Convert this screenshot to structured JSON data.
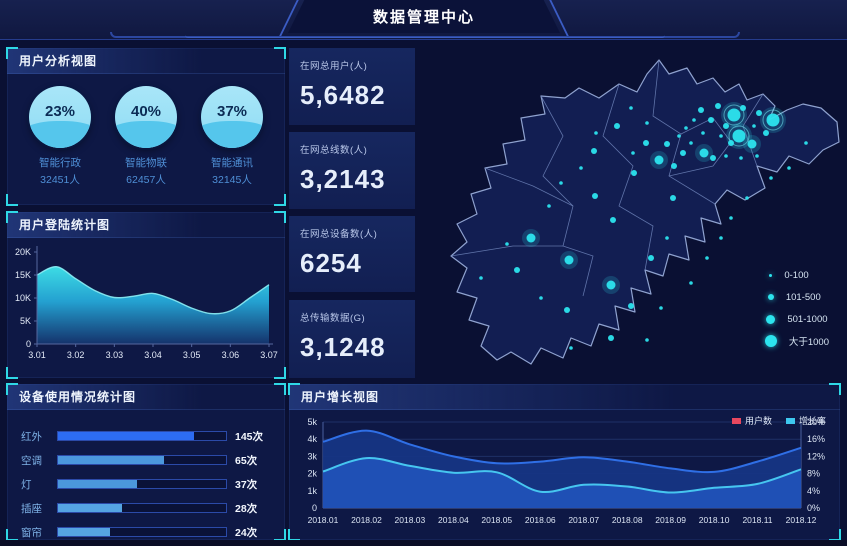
{
  "header": {
    "title": "数据管理中心"
  },
  "colors": {
    "accent_cyan": "#2fd8e6",
    "dot_cyan": "#2ce4ee",
    "bar_primary": "#2d6cf2",
    "bar_secondary": "#4b97dc",
    "users_red_legend": "#e8485f",
    "growth_cyan_legend": "#3ec8ef",
    "map_fill": "#131f55",
    "map_border": "#8fa2cf"
  },
  "panels": {
    "user_analysis": {
      "title": "用户分析视图",
      "gauges": [
        {
          "percent": "23%",
          "label": "智能行政",
          "count": "32451人"
        },
        {
          "percent": "40%",
          "label": "智能物联",
          "count": "62457人"
        },
        {
          "percent": "37%",
          "label": "智能通讯",
          "count": "32145人"
        }
      ]
    },
    "login_stats": {
      "title": "用户登陆统计图"
    },
    "device_usage": {
      "title": "设备使用情况统计图",
      "bars": [
        {
          "label": "红外",
          "value": "145次"
        },
        {
          "label": "空调",
          "value": "65次"
        },
        {
          "label": "灯",
          "value": "37次"
        },
        {
          "label": "插座",
          "value": "28次"
        },
        {
          "label": "窗帘",
          "value": "24次"
        }
      ]
    },
    "user_growth": {
      "title": "用户增长视图",
      "legend": [
        {
          "label": "用户数",
          "color": "#e8485f"
        },
        {
          "label": "增长率",
          "color": "#3ec8ef"
        }
      ]
    }
  },
  "stats": [
    {
      "label": "在网总用户(人)",
      "value": "5,6482"
    },
    {
      "label": "在网总线数(人)",
      "value": "3,2143"
    },
    {
      "label": "在网总设备数(人)",
      "value": "6254"
    },
    {
      "label": "总传输数据(G)",
      "value": "3,1248"
    }
  ],
  "map_legend": [
    {
      "label": "0-100"
    },
    {
      "label": "101-500"
    },
    {
      "label": "501-1000"
    },
    {
      "label": "大于1000"
    }
  ],
  "chart_data": [
    {
      "id": "login",
      "type": "area",
      "title": "用户登陆统计图",
      "x_ticks": [
        "3.01",
        "3.02",
        "3.03",
        "3.04",
        "3.05",
        "3.06",
        "3.07"
      ],
      "values_k": [
        15.0,
        16.8,
        14.2,
        11.6,
        10.1,
        10.4,
        11.0,
        9.7,
        7.8,
        6.6,
        7.2,
        10.0,
        12.9
      ],
      "ylim": [
        0,
        20
      ],
      "y_ticks": [
        "0",
        "5K",
        "10K",
        "15K",
        "20K"
      ],
      "grid": false
    },
    {
      "id": "devices",
      "type": "bar",
      "orientation": "horizontal",
      "categories": [
        "红外",
        "空调",
        "灯",
        "插座",
        "窗帘"
      ],
      "values": [
        145,
        65,
        37,
        28,
        24
      ],
      "unit": "次",
      "fill_pct": [
        81,
        63,
        47,
        38,
        31
      ],
      "colors": [
        "#2d6cf2",
        "#4b97dc",
        "#4b97dc",
        "#55a4e2",
        "#55a4e2"
      ]
    },
    {
      "id": "growth",
      "type": "area",
      "title": "用户增长视图",
      "categories": [
        "2018.01",
        "2018.02",
        "2018.03",
        "2018.04",
        "2018.05",
        "2018.06",
        "2018.07",
        "2018.08",
        "2018.09",
        "2018.10",
        "2018.11",
        "2018.12"
      ],
      "series": [
        {
          "name": "用户数",
          "axis": "left",
          "values": [
            3.85,
            4.5,
            3.7,
            3.0,
            2.6,
            2.7,
            2.95,
            2.7,
            2.3,
            2.1,
            2.7,
            3.5
          ]
        },
        {
          "name": "增长率",
          "axis": "right",
          "values": [
            8.5,
            11.6,
            9.8,
            8.2,
            8.3,
            3.8,
            5.4,
            5.0,
            3.6,
            4.7,
            5.6,
            9.0
          ]
        }
      ],
      "ylim_left": [
        0,
        5
      ],
      "y_ticks_left": [
        "0",
        "1k",
        "2k",
        "3k",
        "4k",
        "5k"
      ],
      "ylim_right": [
        0,
        20
      ],
      "y_ticks_right": [
        "0%",
        "4%",
        "8%",
        "12%",
        "16%",
        "20%"
      ],
      "legend_position": "top-right",
      "grid": true
    },
    {
      "id": "map_scatter",
      "type": "scatter",
      "size_classes": [
        "0-100",
        "101-500",
        "501-1000",
        "大于1000"
      ],
      "dots": [
        {
          "x": 313,
          "y": 67,
          "r": 6.5
        },
        {
          "x": 352,
          "y": 72,
          "r": 6.5
        },
        {
          "x": 318,
          "y": 88,
          "r": 6.5
        },
        {
          "x": 238,
          "y": 112,
          "r": 4.5
        },
        {
          "x": 110,
          "y": 190,
          "r": 4.5
        },
        {
          "x": 190,
          "y": 237,
          "r": 4.5
        },
        {
          "x": 148,
          "y": 212,
          "r": 4.5
        },
        {
          "x": 283,
          "y": 105,
          "r": 4.5
        },
        {
          "x": 331,
          "y": 96,
          "r": 4.5
        },
        {
          "x": 280,
          "y": 62,
          "r": 3
        },
        {
          "x": 297,
          "y": 58,
          "r": 3
        },
        {
          "x": 322,
          "y": 60,
          "r": 3
        },
        {
          "x": 338,
          "y": 65,
          "r": 3
        },
        {
          "x": 345,
          "y": 85,
          "r": 3
        },
        {
          "x": 305,
          "y": 78,
          "r": 3
        },
        {
          "x": 290,
          "y": 72,
          "r": 3
        },
        {
          "x": 310,
          "y": 95,
          "r": 3
        },
        {
          "x": 292,
          "y": 110,
          "r": 3
        },
        {
          "x": 262,
          "y": 105,
          "r": 3
        },
        {
          "x": 246,
          "y": 96,
          "r": 3
        },
        {
          "x": 225,
          "y": 95,
          "r": 3
        },
        {
          "x": 196,
          "y": 78,
          "r": 3
        },
        {
          "x": 173,
          "y": 103,
          "r": 3
        },
        {
          "x": 213,
          "y": 125,
          "r": 3
        },
        {
          "x": 252,
          "y": 150,
          "r": 3
        },
        {
          "x": 174,
          "y": 148,
          "r": 3
        },
        {
          "x": 230,
          "y": 210,
          "r": 3
        },
        {
          "x": 96,
          "y": 222,
          "r": 3
        },
        {
          "x": 146,
          "y": 262,
          "r": 3
        },
        {
          "x": 190,
          "y": 290,
          "r": 3
        },
        {
          "x": 210,
          "y": 258,
          "r": 3
        },
        {
          "x": 253,
          "y": 118,
          "r": 3
        },
        {
          "x": 192,
          "y": 172,
          "r": 3
        },
        {
          "x": 333,
          "y": 78,
          "r": 1.8
        },
        {
          "x": 300,
          "y": 88,
          "r": 1.8
        },
        {
          "x": 282,
          "y": 85,
          "r": 1.8
        },
        {
          "x": 270,
          "y": 95,
          "r": 1.8
        },
        {
          "x": 265,
          "y": 80,
          "r": 1.8
        },
        {
          "x": 258,
          "y": 88,
          "r": 1.8
        },
        {
          "x": 273,
          "y": 72,
          "r": 1.8
        },
        {
          "x": 305,
          "y": 108,
          "r": 1.8
        },
        {
          "x": 320,
          "y": 110,
          "r": 1.8
        },
        {
          "x": 336,
          "y": 108,
          "r": 1.8
        },
        {
          "x": 212,
          "y": 105,
          "r": 1.8
        },
        {
          "x": 160,
          "y": 120,
          "r": 1.8
        },
        {
          "x": 175,
          "y": 85,
          "r": 1.8
        },
        {
          "x": 140,
          "y": 135,
          "r": 1.8
        },
        {
          "x": 210,
          "y": 60,
          "r": 1.8
        },
        {
          "x": 226,
          "y": 75,
          "r": 1.8
        },
        {
          "x": 120,
          "y": 250,
          "r": 1.8
        },
        {
          "x": 86,
          "y": 196,
          "r": 1.8
        },
        {
          "x": 60,
          "y": 230,
          "r": 1.8
        },
        {
          "x": 150,
          "y": 300,
          "r": 1.8
        },
        {
          "x": 226,
          "y": 292,
          "r": 1.8
        },
        {
          "x": 240,
          "y": 260,
          "r": 1.8
        },
        {
          "x": 270,
          "y": 235,
          "r": 1.8
        },
        {
          "x": 286,
          "y": 210,
          "r": 1.8
        },
        {
          "x": 300,
          "y": 190,
          "r": 1.8
        },
        {
          "x": 310,
          "y": 170,
          "r": 1.8
        },
        {
          "x": 326,
          "y": 150,
          "r": 1.8
        },
        {
          "x": 350,
          "y": 130,
          "r": 1.8
        },
        {
          "x": 368,
          "y": 120,
          "r": 1.8
        },
        {
          "x": 385,
          "y": 95,
          "r": 1.8
        },
        {
          "x": 128,
          "y": 158,
          "r": 1.8
        },
        {
          "x": 246,
          "y": 190,
          "r": 1.8
        }
      ]
    }
  ]
}
